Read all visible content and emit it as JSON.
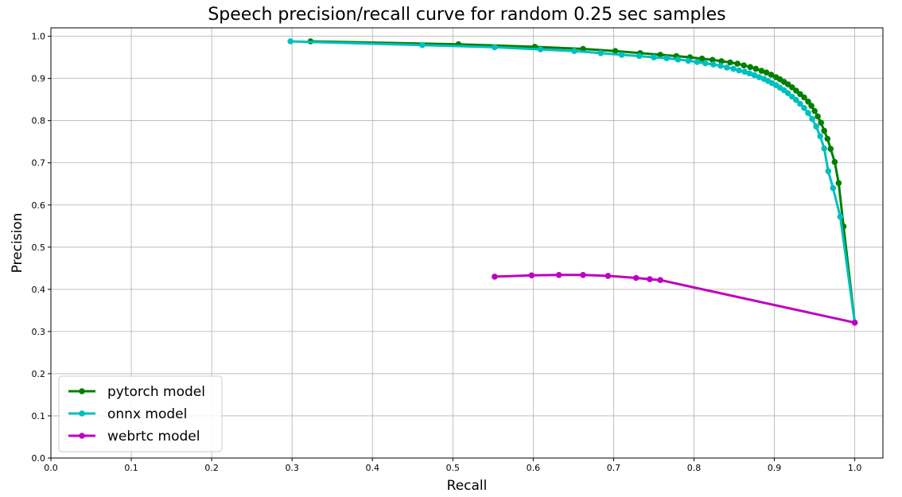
{
  "chart_data": {
    "type": "line",
    "title": "Speech precision/recall curve for random 0.25 sec samples",
    "xlabel": "Recall",
    "ylabel": "Precision",
    "xlim": [
      0.0,
      1.035
    ],
    "ylim": [
      0.0,
      1.02
    ],
    "x_ticks": [
      0.0,
      0.1,
      0.2,
      0.3,
      0.4,
      0.5,
      0.6,
      0.7,
      0.8,
      0.9,
      1.0
    ],
    "x_tick_labels": [
      "0.0",
      "0.1",
      "0.2",
      "0.3",
      "0.4",
      "0.5",
      "0.6",
      "0.7",
      "0.8",
      "0.9",
      "1.0"
    ],
    "y_ticks": [
      0.0,
      0.1,
      0.2,
      0.3,
      0.4,
      0.5,
      0.6,
      0.7,
      0.8,
      0.9,
      1.0
    ],
    "y_tick_labels": [
      "0.0",
      "0.1",
      "0.2",
      "0.3",
      "0.4",
      "0.5",
      "0.6",
      "0.7",
      "0.8",
      "0.9",
      "1.0"
    ],
    "grid": true,
    "legend_position": "bottom-left",
    "series": [
      {
        "name": "pytorch model",
        "color": "#008000",
        "points": [
          [
            0.323,
            0.988
          ],
          [
            0.507,
            0.981
          ],
          [
            0.602,
            0.975
          ],
          [
            0.662,
            0.97
          ],
          [
            0.702,
            0.965
          ],
          [
            0.733,
            0.96
          ],
          [
            0.758,
            0.956
          ],
          [
            0.778,
            0.953
          ],
          [
            0.795,
            0.95
          ],
          [
            0.81,
            0.947
          ],
          [
            0.823,
            0.944
          ],
          [
            0.834,
            0.941
          ],
          [
            0.845,
            0.938
          ],
          [
            0.854,
            0.935
          ],
          [
            0.862,
            0.931
          ],
          [
            0.87,
            0.927
          ],
          [
            0.877,
            0.923
          ],
          [
            0.884,
            0.918
          ],
          [
            0.89,
            0.914
          ],
          [
            0.896,
            0.909
          ],
          [
            0.902,
            0.903
          ],
          [
            0.907,
            0.898
          ],
          [
            0.912,
            0.892
          ],
          [
            0.917,
            0.886
          ],
          [
            0.922,
            0.879
          ],
          [
            0.927,
            0.871
          ],
          [
            0.932,
            0.863
          ],
          [
            0.937,
            0.855
          ],
          [
            0.942,
            0.845
          ],
          [
            0.946,
            0.835
          ],
          [
            0.95,
            0.823
          ],
          [
            0.954,
            0.81
          ],
          [
            0.958,
            0.795
          ],
          [
            0.962,
            0.776
          ],
          [
            0.966,
            0.757
          ],
          [
            0.97,
            0.733
          ],
          [
            0.975,
            0.702
          ],
          [
            0.98,
            0.652
          ],
          [
            0.986,
            0.549
          ],
          [
            1.0,
            0.321
          ]
        ]
      },
      {
        "name": "onnx model",
        "color": "#00bfbf",
        "points": [
          [
            0.298,
            0.988
          ],
          [
            0.462,
            0.979
          ],
          [
            0.552,
            0.974
          ],
          [
            0.609,
            0.969
          ],
          [
            0.651,
            0.965
          ],
          [
            0.684,
            0.96
          ],
          [
            0.71,
            0.956
          ],
          [
            0.732,
            0.953
          ],
          [
            0.75,
            0.95
          ],
          [
            0.766,
            0.948
          ],
          [
            0.78,
            0.945
          ],
          [
            0.793,
            0.942
          ],
          [
            0.804,
            0.939
          ],
          [
            0.814,
            0.936
          ],
          [
            0.824,
            0.933
          ],
          [
            0.833,
            0.93
          ],
          [
            0.841,
            0.926
          ],
          [
            0.849,
            0.923
          ],
          [
            0.856,
            0.919
          ],
          [
            0.863,
            0.916
          ],
          [
            0.869,
            0.912
          ],
          [
            0.875,
            0.908
          ],
          [
            0.881,
            0.903
          ],
          [
            0.887,
            0.899
          ],
          [
            0.892,
            0.894
          ],
          [
            0.897,
            0.889
          ],
          [
            0.902,
            0.884
          ],
          [
            0.907,
            0.878
          ],
          [
            0.912,
            0.872
          ],
          [
            0.917,
            0.865
          ],
          [
            0.922,
            0.857
          ],
          [
            0.927,
            0.849
          ],
          [
            0.932,
            0.84
          ],
          [
            0.937,
            0.83
          ],
          [
            0.942,
            0.818
          ],
          [
            0.947,
            0.804
          ],
          [
            0.952,
            0.786
          ],
          [
            0.957,
            0.763
          ],
          [
            0.962,
            0.734
          ],
          [
            0.967,
            0.68
          ],
          [
            0.973,
            0.64
          ],
          [
            0.982,
            0.572
          ],
          [
            1.0,
            0.321
          ]
        ]
      },
      {
        "name": "webrtc model",
        "color": "#bf00bf",
        "points": [
          [
            0.552,
            0.43
          ],
          [
            0.598,
            0.433
          ],
          [
            0.632,
            0.434
          ],
          [
            0.662,
            0.434
          ],
          [
            0.693,
            0.432
          ],
          [
            0.728,
            0.427
          ],
          [
            0.745,
            0.424
          ],
          [
            0.758,
            0.422
          ],
          [
            1.0,
            0.321
          ]
        ]
      }
    ]
  }
}
